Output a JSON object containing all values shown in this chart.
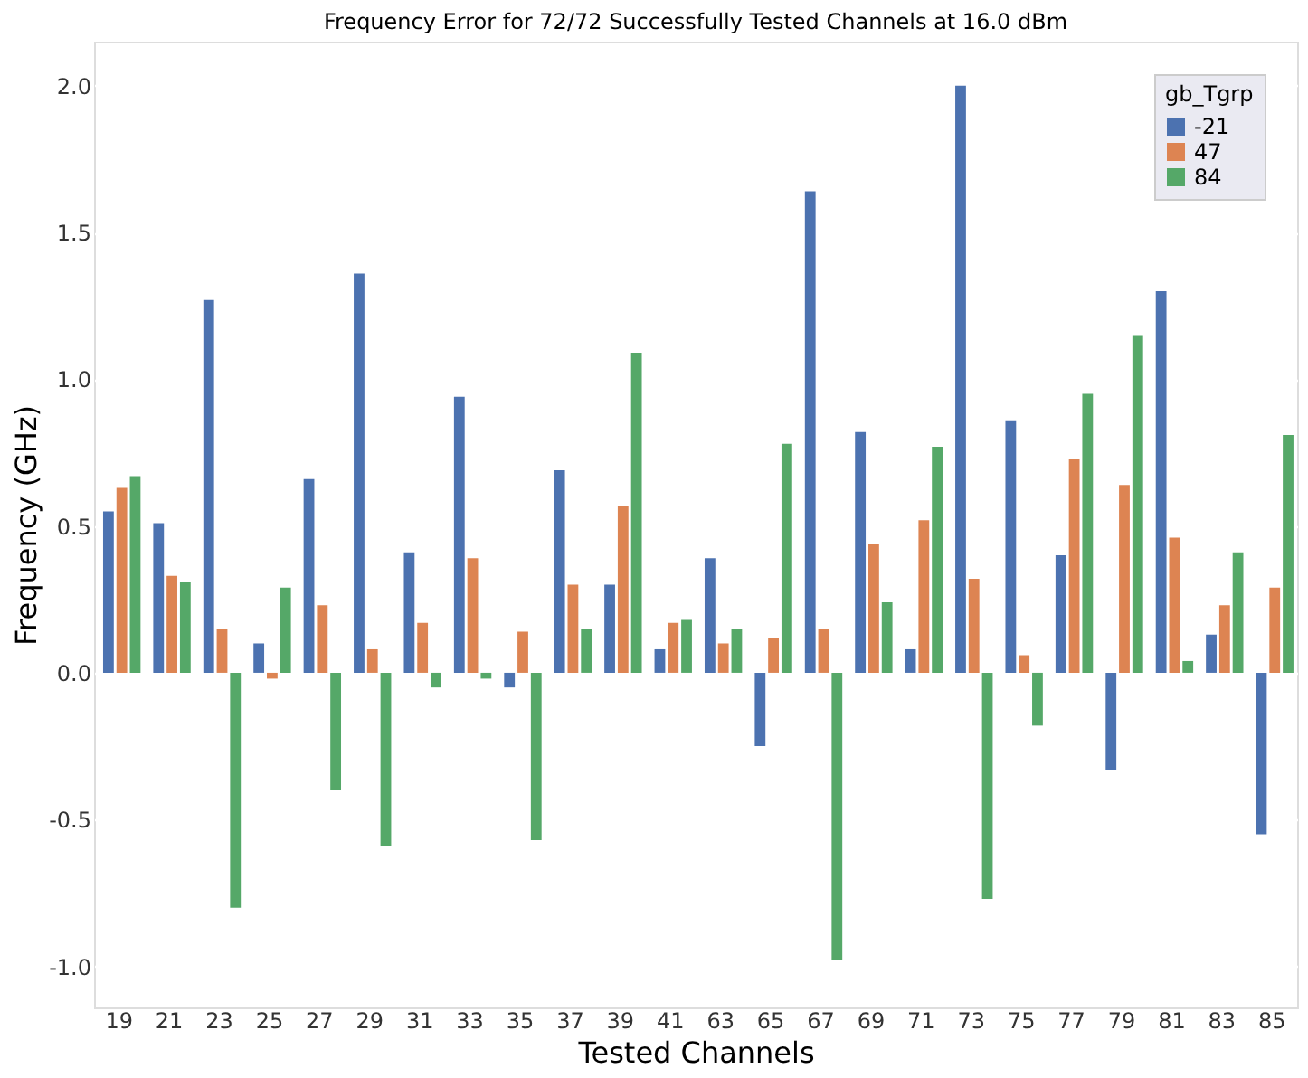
{
  "chart_data": {
    "type": "bar",
    "title": "Frequency Error for 72/72 Successfully Tested Channels at 16.0 dBm",
    "xlabel": "Tested Channels",
    "ylabel": "Frequency (GHz)",
    "legend_title": "gb_Tgrp",
    "categories": [
      "19",
      "21",
      "23",
      "25",
      "27",
      "29",
      "31",
      "33",
      "35",
      "37",
      "39",
      "41",
      "63",
      "65",
      "67",
      "69",
      "71",
      "73",
      "75",
      "77",
      "79",
      "81",
      "83",
      "85"
    ],
    "series": [
      {
        "name": "-21",
        "color": "#4c72b0",
        "values": [
          0.55,
          0.51,
          1.27,
          0.1,
          0.66,
          1.36,
          0.41,
          0.94,
          -0.05,
          0.69,
          0.3,
          0.08,
          0.39,
          -0.25,
          1.64,
          0.82,
          0.08,
          2.0,
          0.86,
          0.4,
          -0.33,
          1.3,
          0.13,
          -0.55
        ]
      },
      {
        "name": "47",
        "color": "#dd8452",
        "values": [
          0.63,
          0.33,
          0.15,
          -0.02,
          0.23,
          0.08,
          0.17,
          0.39,
          0.14,
          0.3,
          0.57,
          0.17,
          0.1,
          0.12,
          0.15,
          0.44,
          0.52,
          0.32,
          0.06,
          0.73,
          0.64,
          0.46,
          0.23,
          0.29
        ]
      },
      {
        "name": "84",
        "color": "#55a868",
        "values": [
          0.67,
          0.31,
          -0.8,
          0.29,
          -0.4,
          -0.59,
          -0.05,
          -0.02,
          -0.57,
          0.15,
          1.09,
          0.18,
          0.15,
          0.78,
          -0.98,
          0.24,
          0.77,
          -0.77,
          -0.18,
          0.95,
          1.15,
          0.04,
          0.41,
          0.81
        ]
      }
    ],
    "ylim": [
      -1.14,
      2.15
    ],
    "yticks": [
      {
        "value": -1.0,
        "label": "-1.0"
      },
      {
        "value": -0.5,
        "label": "-0.5"
      },
      {
        "value": 0.0,
        "label": "0.0"
      },
      {
        "value": 0.5,
        "label": "0.5"
      },
      {
        "value": 1.0,
        "label": "1.0"
      },
      {
        "value": 1.5,
        "label": "1.5"
      },
      {
        "value": 2.0,
        "label": "2.0"
      }
    ],
    "grid": "y",
    "legend": "top right"
  }
}
